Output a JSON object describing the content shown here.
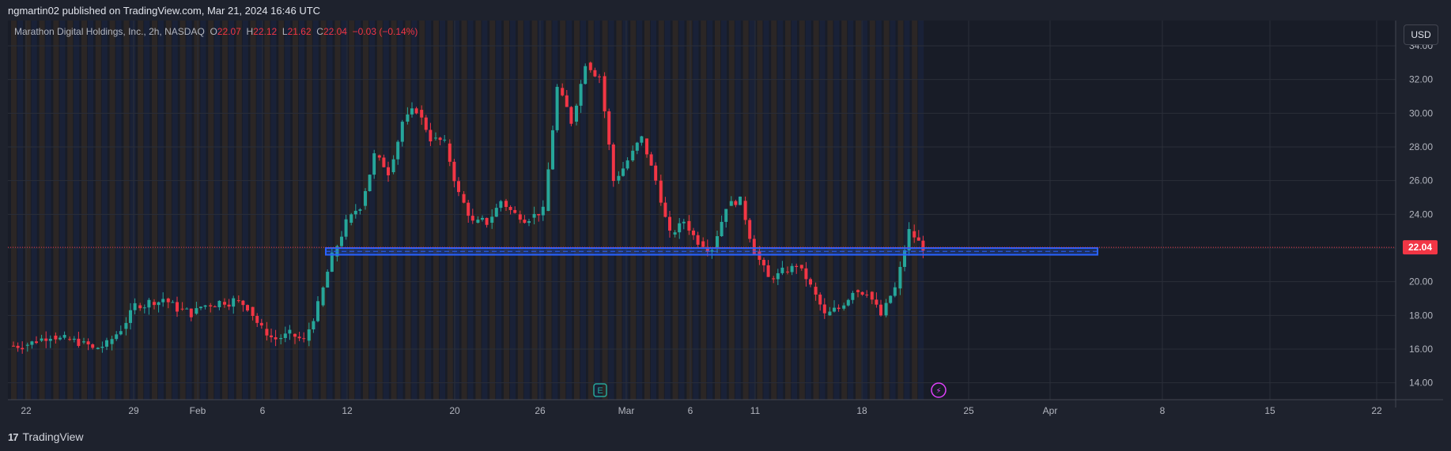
{
  "header": {
    "published_line": "ngmartin02 published on TradingView.com, Mar 21, 2024 16:46 UTC"
  },
  "legend": {
    "symbol": "Marathon Digital Holdings, Inc., 2h, NASDAQ",
    "open_label": "O",
    "open": "22.07",
    "high_label": "H",
    "high": "22.12",
    "low_label": "L",
    "low": "21.62",
    "close_label": "C",
    "close": "22.04",
    "change": "−0.03 (−0.14%)"
  },
  "currency_button": "USD",
  "footer": {
    "brand": "TradingView",
    "logo": "17"
  },
  "colors": {
    "up": "#26a69a",
    "down": "#f23645",
    "zone": "#2962ff",
    "session_orange": "#f7931a",
    "session_blue": "#2962ff",
    "last_price": "#f23645"
  },
  "chart_data": {
    "type": "candlestick",
    "title": "Marathon Digital Holdings, Inc., 2h, NASDAQ",
    "ylim": [
      13,
      35.5
    ],
    "y_ticks": [
      "14.00",
      "16.00",
      "18.00",
      "20.00",
      "22.00",
      "24.00",
      "26.00",
      "28.00",
      "30.00",
      "32.00",
      "34.00"
    ],
    "x_ticks": [
      "22",
      "29",
      "Feb",
      "6",
      "12",
      "20",
      "26",
      "Mar",
      "6",
      "11",
      "18",
      "25",
      "Apr",
      "8",
      "15",
      "22"
    ],
    "last_price": "22.04",
    "support_zone": {
      "low": 21.6,
      "high": 22.0
    },
    "daily_closes": [
      16.2,
      16.5,
      16.8,
      16.6,
      16.4,
      16.0,
      16.3,
      17.2,
      18.6,
      18.8,
      19.0,
      18.4,
      18.1,
      18.6,
      18.8,
      18.9,
      18.5,
      17.2,
      16.6,
      16.9,
      16.5,
      18.6,
      21.5,
      23.5,
      24.5,
      27.5,
      26.5,
      29.5,
      30.2,
      28.5,
      28.2,
      25.2,
      23.5,
      23.5,
      24.8,
      24.0,
      23.8,
      24.2,
      31.5,
      29.5,
      33.0,
      32.2,
      26.0,
      27.2,
      28.5,
      26.0,
      22.8,
      23.6,
      22.4,
      22.0,
      24.5,
      24.8,
      21.8,
      20.2,
      20.6,
      21.0,
      19.7,
      18.0,
      18.4,
      19.5,
      19.4,
      18.0,
      19.6,
      23.0,
      22.04
    ],
    "events": [
      {
        "label": "E",
        "date": "Feb 28"
      },
      {
        "label": "⚡",
        "date": "Mar 22"
      }
    ]
  }
}
